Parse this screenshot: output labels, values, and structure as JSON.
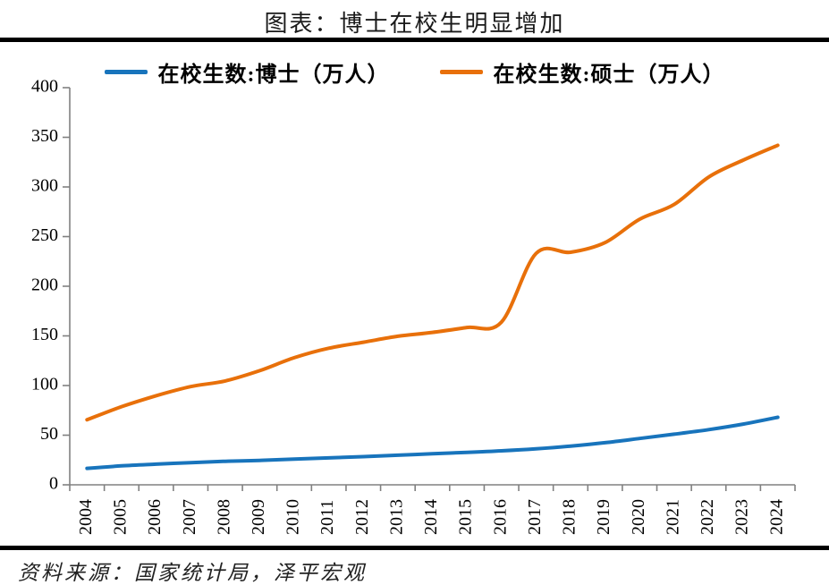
{
  "title": "图表：博士在校生明显增加",
  "source": "资料来源：国家统计局，泽平宏观",
  "colors": {
    "doctor": "#1874BC",
    "master": "#E8700A",
    "axis": "#808080",
    "text": "#000000",
    "rule": "#000000"
  },
  "chart_data": {
    "type": "line",
    "title": "图表：博士在校生明显增加",
    "categories": [
      "2004",
      "2005",
      "2006",
      "2007",
      "2008",
      "2009",
      "2010",
      "2011",
      "2012",
      "2013",
      "2014",
      "2015",
      "2016",
      "2017",
      "2018",
      "2019",
      "2020",
      "2021",
      "2022",
      "2023",
      "2024"
    ],
    "series": [
      {
        "key": "doctor",
        "name": "在校生数:博士（万人）",
        "values": [
          16.6,
          19.1,
          20.8,
          22.3,
          23.7,
          24.6,
          25.9,
          27.1,
          28.4,
          29.8,
          31.3,
          32.7,
          34.2,
          36.2,
          39.0,
          42.4,
          46.7,
          51.0,
          55.6,
          61.2,
          68.0
        ]
      },
      {
        "key": "master",
        "name": "在校生数:硕士（万人）",
        "values": [
          65.5,
          78.7,
          89.7,
          98.9,
          104.6,
          115.0,
          128.0,
          137.6,
          143.6,
          149.6,
          153.5,
          158.5,
          163.9,
          233.0,
          234.2,
          244.0,
          267.5,
          282.3,
          310.0,
          327.0,
          342.0
        ]
      }
    ],
    "xlabel": "",
    "ylabel": "",
    "ylim": [
      0,
      400
    ],
    "yticks": [
      0,
      50,
      100,
      150,
      200,
      250,
      300,
      350,
      400
    ],
    "smooth": true,
    "grid": false,
    "legend_position": "top"
  }
}
